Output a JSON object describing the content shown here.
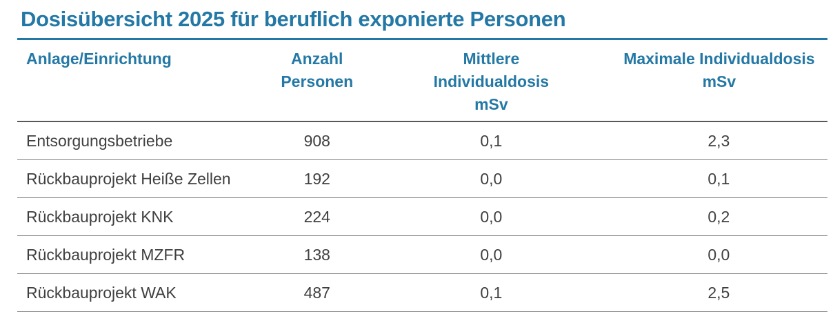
{
  "title": "Dosisübersicht 2025 für beruflich exponierte Personen",
  "colors": {
    "accent": "#2478A5",
    "header_rule": "#58585A",
    "row_rule": "#7F7F7F",
    "body_text": "#3F3F3F",
    "background": "#FFFFFF"
  },
  "chart_data": {
    "type": "table",
    "title": "Dosisübersicht 2025 für beruflich exponierte Personen",
    "columns": [
      {
        "label": "Anlage/Einrichtung",
        "sub": "",
        "align": "left"
      },
      {
        "label": "Anzahl",
        "sub": "Personen",
        "align": "center"
      },
      {
        "label": "Mittlere Individualdosis",
        "sub": "mSv",
        "align": "center"
      },
      {
        "label": "Maximale Individualdosis",
        "sub": "mSv",
        "align": "center"
      }
    ],
    "rows": [
      [
        "Entsorgungsbetriebe",
        "908",
        "0,1",
        "2,3"
      ],
      [
        "Rückbauprojekt Heiße Zellen",
        "192",
        "0,0",
        "0,1"
      ],
      [
        "Rückbauprojekt KNK",
        "224",
        "0,0",
        "0,2"
      ],
      [
        "Rückbauprojekt MZFR",
        "138",
        "0,0",
        "0,0"
      ],
      [
        "Rückbauprojekt WAK",
        "487",
        "0,1",
        "2,5"
      ]
    ]
  }
}
